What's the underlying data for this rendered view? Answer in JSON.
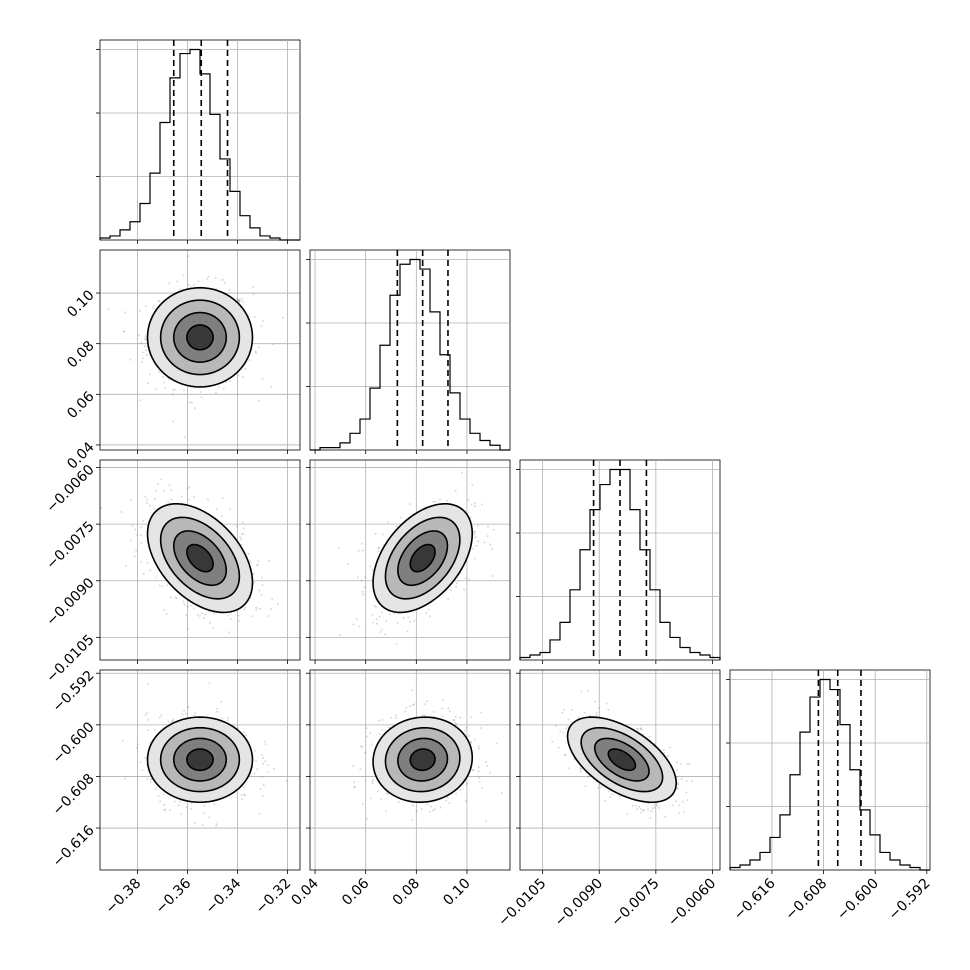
{
  "chart_data": {
    "type": "corner",
    "title": "",
    "grid": true,
    "params": [
      {
        "index": 0,
        "range": [
          -0.395,
          -0.315
        ],
        "ticks": [
          -0.38,
          -0.36,
          -0.34,
          -0.32
        ],
        "tick_labels": [
          "−0.38",
          "−0.36",
          "−0.34",
          "−0.32"
        ],
        "mean": -0.355,
        "sigma": 0.0105,
        "quantiles": [
          -0.3655,
          -0.3545,
          -0.344
        ],
        "hist_counts": [
          1,
          2,
          5,
          9,
          18,
          33,
          58,
          80,
          92,
          94,
          82,
          62,
          40,
          24,
          12,
          6,
          2,
          1,
          0,
          0
        ]
      },
      {
        "index": 1,
        "range": [
          0.038,
          0.117
        ],
        "ticks": [
          0.04,
          0.06,
          0.08,
          0.1
        ],
        "tick_labels": [
          "0.04",
          "0.06",
          "0.08",
          "0.10"
        ],
        "mean": 0.0825,
        "sigma": 0.0098,
        "quantiles": [
          0.0725,
          0.0825,
          0.0925
        ],
        "hist_counts": [
          0,
          1,
          1,
          3,
          7,
          13,
          26,
          44,
          65,
          78,
          80,
          76,
          58,
          40,
          24,
          13,
          7,
          4,
          2,
          0
        ]
      },
      {
        "index": 2,
        "range": [
          -0.0111,
          -0.0058
        ],
        "ticks": [
          -0.0105,
          -0.009,
          -0.0075,
          -0.006
        ],
        "tick_labels": [
          "−0.0105",
          "−0.0090",
          "−0.0075",
          "−0.0060"
        ],
        "mean": -0.0084,
        "sigma": 0.00072,
        "quantiles": [
          -0.00915,
          -0.00845,
          -0.00775
        ],
        "hist_counts": [
          1,
          2,
          3,
          8,
          15,
          28,
          44,
          60,
          70,
          76,
          76,
          60,
          44,
          28,
          15,
          9,
          5,
          3,
          2,
          1
        ]
      },
      {
        "index": 3,
        "range": [
          -0.6225,
          -0.5915
        ],
        "ticks": [
          -0.616,
          -0.608,
          -0.6,
          -0.592
        ],
        "tick_labels": [
          "−0.616",
          "−0.608",
          "−0.600",
          "−0.592"
        ],
        "mean": -0.6054,
        "sigma": 0.0033,
        "quantiles": [
          -0.6088,
          -0.6058,
          -0.6022
        ],
        "hist_counts": [
          1,
          2,
          4,
          7,
          13,
          22,
          38,
          55,
          69,
          76,
          72,
          58,
          40,
          24,
          14,
          7,
          4,
          2,
          1,
          0
        ]
      }
    ],
    "correlations": [
      [
        1,
        0,
        -0.45,
        0
      ],
      [
        0,
        1,
        0.45,
        0.05
      ],
      [
        -0.45,
        0.45,
        1,
        -0.55
      ],
      [
        0,
        0.05,
        -0.55,
        1
      ]
    ],
    "contour_levels_sigma": [
      0.5,
      1.0,
      1.5,
      2.0
    ],
    "colors": {
      "line": "#000000",
      "grid": "#b0b0b0",
      "density": "#000000"
    }
  }
}
